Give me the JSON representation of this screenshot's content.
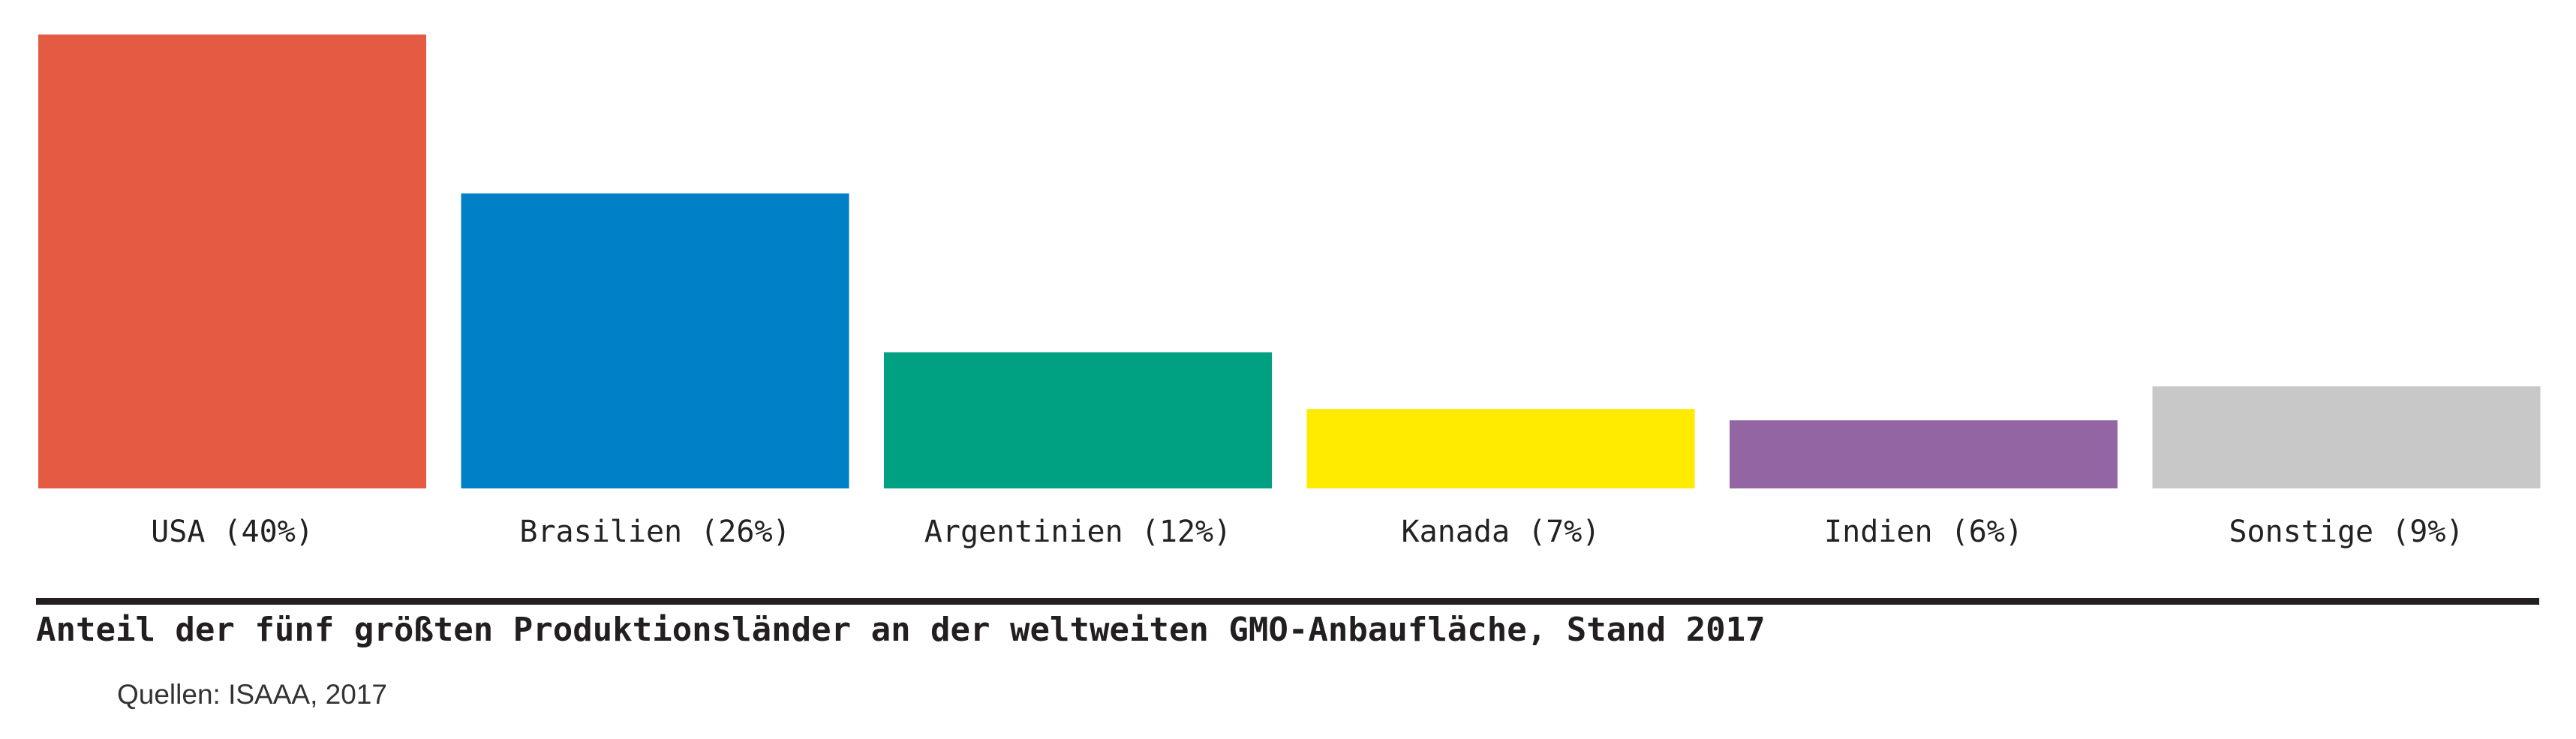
{
  "chart_data": {
    "type": "bar",
    "categories": [
      "USA (40%)",
      "Brasilien (26%)",
      "Argentinien (12%)",
      "Kanada (7%)",
      "Indien (6%)",
      "Sonstige (9%)"
    ],
    "values": [
      40,
      26,
      12,
      7,
      6,
      9
    ],
    "colors": [
      "#e55a42",
      "#0080c6",
      "#00a183",
      "#ffeb00",
      "#9465a3",
      "#c8c8c8"
    ],
    "title": "Anteil der fünf größten Produktionsländer an der weltweiten GMO-Anbaufläche, Stand 2017",
    "xlabel": "",
    "ylabel": "",
    "ylim": [
      0,
      40
    ],
    "grid": false,
    "legend": "none"
  },
  "source": "Quellen: ISAAA, 2017"
}
